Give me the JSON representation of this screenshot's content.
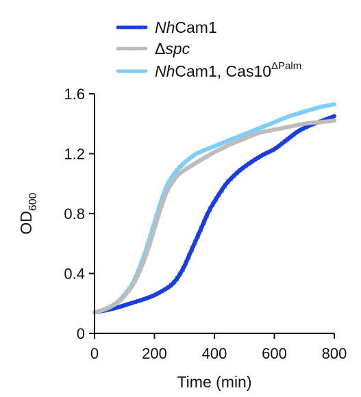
{
  "chart_data": {
    "type": "line",
    "xlabel": "Time (min)",
    "ylabel": {
      "main": "OD",
      "sub": "600"
    },
    "xlim": [
      0,
      800
    ],
    "ylim": [
      0,
      1.6
    ],
    "xticks": [
      0,
      200,
      400,
      600,
      800
    ],
    "yticks": [
      0,
      0.4,
      0.8,
      1.2,
      1.6
    ],
    "xtick_labels": [
      "0",
      "200",
      "400",
      "600",
      "800"
    ],
    "ytick_labels": [
      "0",
      "0.4",
      "0.8",
      "1.2",
      "1.6"
    ],
    "grid": false,
    "legend_placement": "top",
    "series": [
      {
        "name_parts": [
          {
            "text": "Nh",
            "italic": true
          },
          {
            "text": "Cam1"
          }
        ],
        "color": "#1a3de0",
        "x": [
          0,
          40,
          80,
          120,
          160,
          200,
          240,
          260,
          280,
          300,
          320,
          340,
          360,
          380,
          400,
          440,
          480,
          520,
          560,
          600,
          640,
          680,
          720,
          760,
          800
        ],
        "y": [
          0.14,
          0.155,
          0.175,
          0.2,
          0.225,
          0.255,
          0.3,
          0.33,
          0.38,
          0.45,
          0.54,
          0.63,
          0.72,
          0.81,
          0.88,
          1.0,
          1.08,
          1.14,
          1.19,
          1.23,
          1.29,
          1.35,
          1.39,
          1.42,
          1.45
        ]
      },
      {
        "name_parts": [
          {
            "text": "Δ"
          },
          {
            "text": "spc",
            "italic": true
          }
        ],
        "color": "#bdbdbd",
        "x": [
          0,
          40,
          80,
          120,
          140,
          160,
          180,
          200,
          220,
          240,
          260,
          280,
          300,
          340,
          400,
          450,
          500,
          550,
          600,
          650,
          700,
          750,
          800
        ],
        "y": [
          0.14,
          0.165,
          0.21,
          0.3,
          0.37,
          0.46,
          0.57,
          0.7,
          0.83,
          0.94,
          1.01,
          1.06,
          1.09,
          1.14,
          1.21,
          1.26,
          1.3,
          1.34,
          1.36,
          1.38,
          1.4,
          1.41,
          1.42
        ]
      },
      {
        "name_parts": [
          {
            "text": "Nh",
            "italic": true
          },
          {
            "text": "Cam1, Cas10"
          },
          {
            "text": "ΔPalm",
            "sup": true
          }
        ],
        "color": "#7ecff8",
        "x": [
          0,
          40,
          80,
          120,
          140,
          160,
          180,
          200,
          220,
          240,
          260,
          280,
          300,
          340,
          400,
          450,
          500,
          550,
          600,
          650,
          700,
          750,
          800
        ],
        "y": [
          0.14,
          0.165,
          0.215,
          0.31,
          0.39,
          0.49,
          0.61,
          0.74,
          0.87,
          0.98,
          1.05,
          1.1,
          1.14,
          1.2,
          1.25,
          1.29,
          1.33,
          1.37,
          1.41,
          1.45,
          1.48,
          1.51,
          1.53
        ]
      }
    ]
  }
}
